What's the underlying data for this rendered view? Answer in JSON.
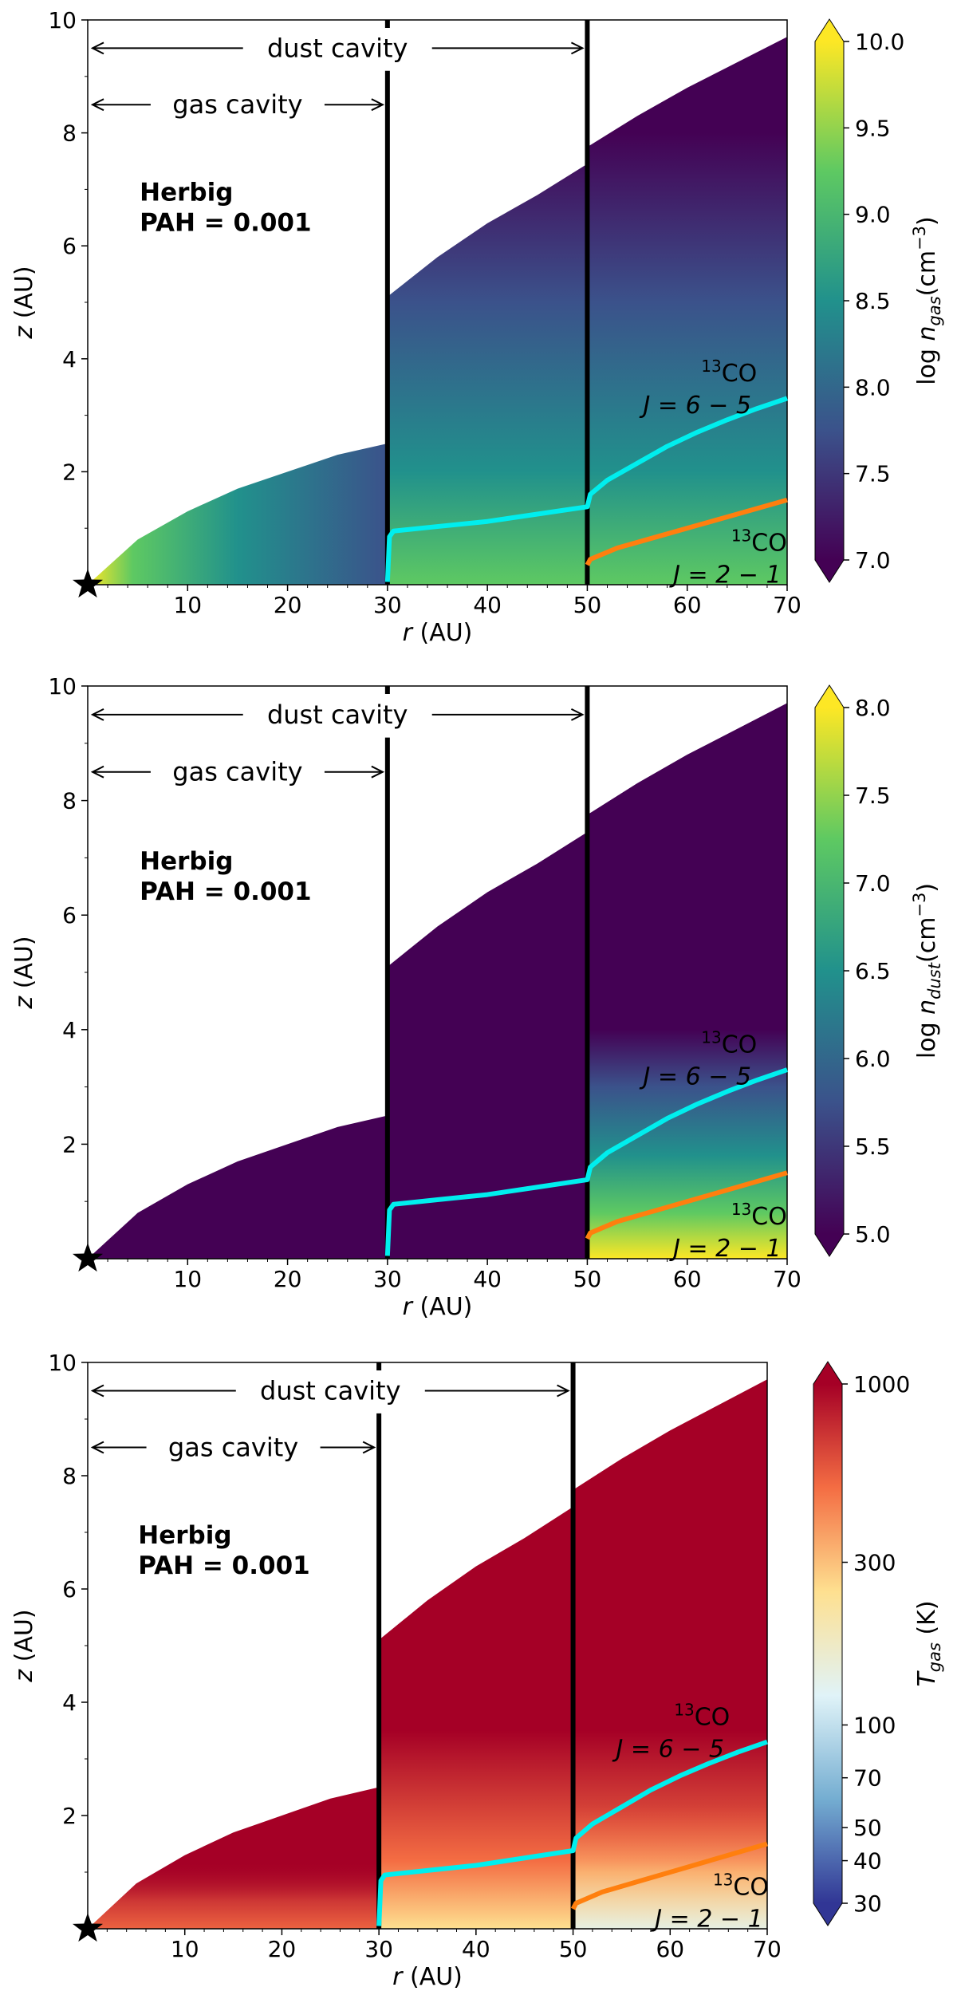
{
  "chart_data": [
    {
      "type": "heatmap",
      "panel_label": [
        "Herbig",
        "PAH = 0.001"
      ],
      "xlabel_var": "r",
      "xlabel_unit": " (AU)",
      "ylabel_var": "z",
      "ylabel_unit": " (AU)",
      "xlim": [
        0,
        70
      ],
      "ylim": [
        0,
        10
      ],
      "xticks": [
        10,
        20,
        30,
        40,
        50,
        60,
        70
      ],
      "yticks": [
        2,
        4,
        6,
        8,
        10
      ],
      "colorbar": {
        "label": "log n_gas(cm^-3)",
        "label_pre": "log ",
        "label_sym": "n",
        "label_sub": "gas",
        "label_post": "(cm",
        "label_sup": "−3",
        "label_end": ")",
        "scale": "linear",
        "range": [
          7.0,
          10.0
        ],
        "ticks": [
          "7.0",
          "7.5",
          "8.0",
          "8.5",
          "9.0",
          "9.5",
          "10.0"
        ],
        "tick_values": [
          7.0,
          7.5,
          8.0,
          8.5,
          9.0,
          9.5,
          10.0
        ],
        "colormap": "viridis",
        "colors": [
          "#440154",
          "#3b528b",
          "#21918c",
          "#5ec962",
          "#fde725"
        ]
      },
      "annotations": {
        "dust_cavity": {
          "text": "dust cavity",
          "from": 0,
          "to": 50,
          "z": 9.5
        },
        "gas_cavity": {
          "text": "gas cavity",
          "from": 0,
          "to": 30,
          "z": 8.5
        }
      },
      "walls": [
        {
          "r": 30,
          "z_max": 9.1,
          "dashed_top": true
        },
        {
          "r": 50,
          "z_max": 10
        }
      ],
      "disk_surface": {
        "r": [
          0,
          5,
          10,
          15,
          20,
          25,
          30,
          30,
          35,
          40,
          45,
          50,
          50,
          55,
          60,
          65,
          70
        ],
        "z": [
          0,
          0.8,
          1.3,
          1.7,
          2.0,
          2.3,
          2.5,
          5.1,
          5.8,
          6.4,
          6.9,
          7.45,
          7.75,
          8.3,
          8.8,
          9.25,
          9.7
        ]
      },
      "series": [
        {
          "name": "13CO J = 6 − 5",
          "color": "#00eeee",
          "r": [
            30,
            30.2,
            30.6,
            35,
            40,
            45,
            50,
            50.3,
            52,
            55,
            58,
            61,
            64,
            67,
            70
          ],
          "z": [
            0.05,
            0.85,
            0.95,
            1.03,
            1.12,
            1.25,
            1.38,
            1.6,
            1.85,
            2.15,
            2.45,
            2.7,
            2.92,
            3.12,
            3.3
          ]
        },
        {
          "name": "13CO J = 2 − 1",
          "color": "#ff7f0e",
          "r": [
            50,
            50.3,
            53,
            57,
            61,
            65,
            70
          ],
          "z": [
            0.35,
            0.45,
            0.65,
            0.85,
            1.05,
            1.25,
            1.5
          ]
        }
      ],
      "line_labels": [
        {
          "sup": "13",
          "main": "CO",
          "trans": "J = 6 − 5",
          "color": "#000000",
          "r": 61,
          "z": 3.6
        },
        {
          "sup": "13",
          "main": "CO",
          "trans": "J = 2 − 1",
          "color": "#000000",
          "r": 64,
          "z": 0.6
        }
      ]
    },
    {
      "type": "heatmap",
      "panel_label": [
        "Herbig",
        "PAH = 0.001"
      ],
      "xlabel_var": "r",
      "xlabel_unit": " (AU)",
      "ylabel_var": "z",
      "ylabel_unit": " (AU)",
      "xlim": [
        0,
        70
      ],
      "ylim": [
        0,
        10
      ],
      "xticks": [
        10,
        20,
        30,
        40,
        50,
        60,
        70
      ],
      "yticks": [
        2,
        4,
        6,
        8,
        10
      ],
      "colorbar": {
        "label": "log n_dust(cm^-3)",
        "label_pre": "log ",
        "label_sym": "n",
        "label_sub": "dust",
        "label_post": "(cm",
        "label_sup": "−3",
        "label_end": ")",
        "scale": "linear",
        "range": [
          5.0,
          8.0
        ],
        "ticks": [
          "5.0",
          "5.5",
          "6.0",
          "6.5",
          "7.0",
          "7.5",
          "8.0"
        ],
        "tick_values": [
          5.0,
          5.5,
          6.0,
          6.5,
          7.0,
          7.5,
          8.0
        ],
        "colormap": "viridis",
        "colors": [
          "#440154",
          "#3b528b",
          "#21918c",
          "#5ec962",
          "#fde725"
        ]
      },
      "annotations": {
        "dust_cavity": {
          "text": "dust cavity",
          "from": 0,
          "to": 50,
          "z": 9.5
        },
        "gas_cavity": {
          "text": "gas cavity",
          "from": 0,
          "to": 30,
          "z": 8.5
        }
      },
      "walls": [
        {
          "r": 30,
          "z_max": 9.1,
          "dashed_top": true
        },
        {
          "r": 50,
          "z_max": 10
        }
      ],
      "disk_surface": {
        "r": [
          0,
          5,
          10,
          15,
          20,
          25,
          30,
          30,
          35,
          40,
          45,
          50,
          50,
          55,
          60,
          65,
          70
        ],
        "z": [
          0,
          0.8,
          1.3,
          1.7,
          2.0,
          2.3,
          2.5,
          5.1,
          5.8,
          6.4,
          6.9,
          7.45,
          7.75,
          8.3,
          8.8,
          9.25,
          9.7
        ]
      },
      "series": [
        {
          "name": "13CO J = 6 − 5",
          "color": "#00eeee",
          "r": [
            30,
            30.2,
            30.6,
            35,
            40,
            45,
            50,
            50.3,
            52,
            55,
            58,
            61,
            64,
            67,
            70
          ],
          "z": [
            0.05,
            0.85,
            0.95,
            1.03,
            1.12,
            1.25,
            1.38,
            1.6,
            1.85,
            2.15,
            2.45,
            2.7,
            2.92,
            3.12,
            3.3
          ]
        },
        {
          "name": "13CO J = 2 − 1",
          "color": "#ff7f0e",
          "r": [
            50,
            50.3,
            53,
            57,
            61,
            65,
            70
          ],
          "z": [
            0.35,
            0.45,
            0.65,
            0.85,
            1.05,
            1.25,
            1.5
          ]
        }
      ],
      "line_labels": [
        {
          "sup": "13",
          "main": "CO",
          "trans": "J = 6 − 5",
          "color": "#00eeee",
          "r": 61,
          "z": 3.6
        },
        {
          "sup": "13",
          "main": "CO",
          "trans": "J = 2 − 1",
          "color": "#000000",
          "r": 64,
          "z": 0.6
        }
      ]
    },
    {
      "type": "heatmap",
      "panel_label": [
        "Herbig",
        "PAH = 0.001"
      ],
      "xlabel_var": "r",
      "xlabel_unit": " (AU)",
      "ylabel_var": "z",
      "ylabel_unit": " (AU)",
      "xlim": [
        0,
        70
      ],
      "ylim": [
        0,
        10
      ],
      "xticks": [
        10,
        20,
        30,
        40,
        50,
        60,
        70
      ],
      "yticks": [
        2,
        4,
        6,
        8,
        10
      ],
      "colorbar": {
        "label": "T_gas (K)",
        "label_pre": "",
        "label_sym": "T",
        "label_sub": "gas",
        "label_post": " (K)",
        "label_sup": "",
        "label_end": "",
        "scale": "log",
        "range": [
          30,
          1000
        ],
        "ticks": [
          "1000",
          "300",
          "100",
          "70",
          "50",
          "40",
          "30"
        ],
        "tick_values": [
          1000,
          300,
          100,
          70,
          50,
          40,
          30
        ],
        "colormap": "RdYlBu_r",
        "colors": [
          "#313695",
          "#74add1",
          "#e0f3f8",
          "#fee090",
          "#f46d43",
          "#a50026"
        ]
      },
      "annotations": {
        "dust_cavity": {
          "text": "dust cavity",
          "from": 0,
          "to": 50,
          "z": 9.5
        },
        "gas_cavity": {
          "text": "gas cavity",
          "from": 0,
          "to": 30,
          "z": 8.5
        }
      },
      "walls": [
        {
          "r": 30,
          "z_max": 9.1,
          "dashed_top": true
        },
        {
          "r": 50,
          "z_max": 10
        }
      ],
      "disk_surface": {
        "r": [
          0,
          5,
          10,
          15,
          20,
          25,
          30,
          30,
          35,
          40,
          45,
          50,
          50,
          55,
          60,
          65,
          70
        ],
        "z": [
          0,
          0.8,
          1.3,
          1.7,
          2.0,
          2.3,
          2.5,
          5.1,
          5.8,
          6.4,
          6.9,
          7.45,
          7.75,
          8.3,
          8.8,
          9.25,
          9.7
        ]
      },
      "series": [
        {
          "name": "13CO J = 6 − 5",
          "color": "#00eeee",
          "r": [
            30,
            30.2,
            30.6,
            35,
            40,
            45,
            50,
            50.3,
            52,
            55,
            58,
            61,
            64,
            67,
            70
          ],
          "z": [
            0.05,
            0.85,
            0.95,
            1.03,
            1.12,
            1.25,
            1.38,
            1.6,
            1.85,
            2.15,
            2.45,
            2.7,
            2.92,
            3.12,
            3.3
          ]
        },
        {
          "name": "13CO J = 2 − 1",
          "color": "#ff7f0e",
          "r": [
            50,
            50.3,
            53,
            57,
            61,
            65,
            70
          ],
          "z": [
            0.35,
            0.45,
            0.65,
            0.85,
            1.05,
            1.25,
            1.5
          ]
        }
      ],
      "line_labels": [
        {
          "sup": "13",
          "main": "CO",
          "trans": "J = 6 − 5",
          "color": "#000000",
          "r": 60,
          "z": 3.6
        },
        {
          "sup": "13",
          "main": "CO",
          "trans": "J = 2 − 1",
          "color": "#000000",
          "r": 64,
          "z": 0.6
        }
      ]
    }
  ]
}
